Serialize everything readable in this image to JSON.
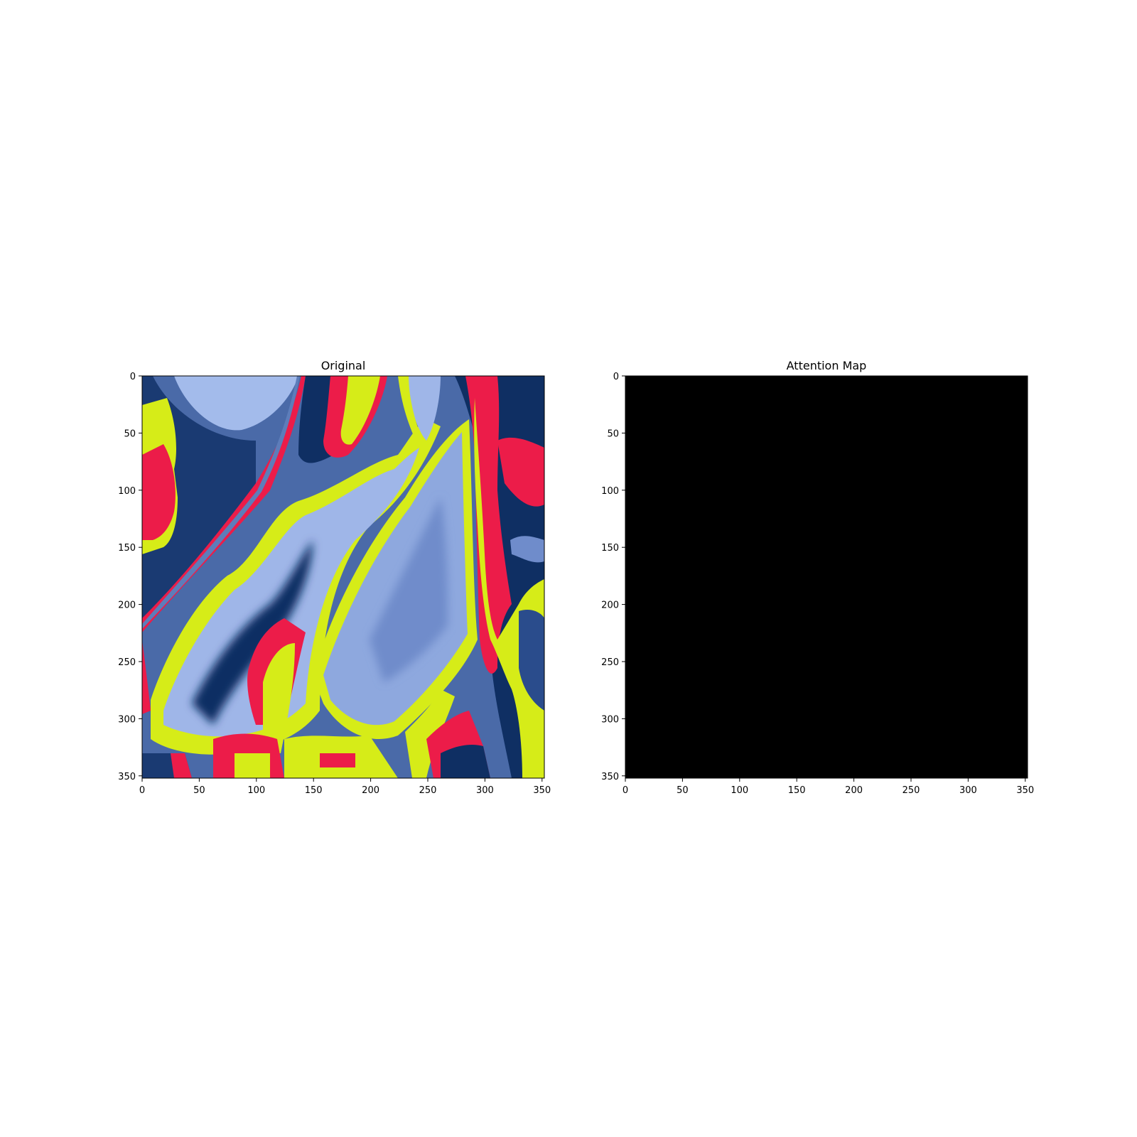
{
  "chart_data": [
    {
      "type": "heatmap",
      "title": "Original",
      "xlabel": "",
      "ylabel": "",
      "xlim": [
        0,
        352
      ],
      "ylim": [
        352,
        0
      ],
      "x_ticks": [
        0,
        50,
        100,
        150,
        200,
        250,
        300,
        350
      ],
      "y_ticks": [
        0,
        50,
        100,
        150,
        200,
        250,
        300,
        350
      ],
      "image_palette": {
        "dark_blue": "#0f2f63",
        "mid_blue": "#5b7bb8",
        "light_blue": "#9fb6e8",
        "yellow": "#d6ec18",
        "red": "#ec1c49"
      }
    },
    {
      "type": "heatmap",
      "title": "Attention Map",
      "xlabel": "",
      "ylabel": "",
      "xlim": [
        0,
        352
      ],
      "ylim": [
        352,
        0
      ],
      "x_ticks": [
        0,
        50,
        100,
        150,
        200,
        250,
        300,
        350
      ],
      "y_ticks": [
        0,
        50,
        100,
        150,
        200,
        250,
        300,
        350
      ],
      "fill_color": "#000000"
    }
  ]
}
